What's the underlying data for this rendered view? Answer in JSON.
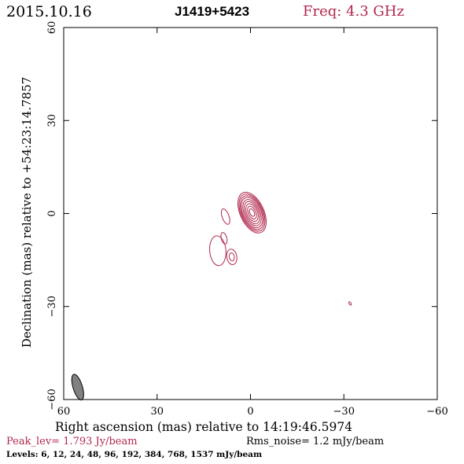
{
  "header": {
    "date": "2015.10.16",
    "source": "J1419+5423",
    "freq": "Freq: 4.3 GHz"
  },
  "footer": {
    "peak": "Peak_lev=  1.793 Jy/beam",
    "rms": "Rms_noise=  1.2 mJy/beam",
    "levels": "Levels:   6,   12,   24,   48,   96,  192,  384,  768,  1537 mJy/beam"
  },
  "colors": {
    "contour": "#b0284c",
    "axis": "#000000",
    "beam": "#808080"
  },
  "chart_data": {
    "type": "contour",
    "xlabel": "Right ascension (mas) relative to 14:19:46.5974",
    "ylabel": "Declination (mas) relative to +54:23:14.7857",
    "xlim": [
      60,
      -60
    ],
    "ylim": [
      -60,
      60
    ],
    "xticks": [
      60,
      30,
      0,
      -30,
      -60
    ],
    "yticks": [
      -60,
      -30,
      0,
      30,
      60
    ],
    "xtick_labels": [
      "60",
      "30",
      "0",
      "−30",
      "−60"
    ],
    "ytick_labels": [
      "−60",
      "−30",
      "0",
      "30",
      "60"
    ],
    "levels_mJy": [
      6,
      12,
      24,
      48,
      96,
      192,
      384,
      768,
      1537
    ],
    "components": [
      {
        "x": -0.5,
        "y": 0.3,
        "rx": [
          3.8,
          3.5,
          3.2,
          2.9,
          2.5,
          2.1,
          1.7,
          1.2,
          0.7
        ],
        "ry": [
          7.0,
          6.4,
          5.8,
          5.2,
          4.5,
          3.8,
          3.0,
          2.2,
          1.3
        ],
        "angle_deg": 25
      },
      {
        "x": 8.0,
        "y": -1.0,
        "rx": [
          1.1
        ],
        "ry": [
          2.6
        ],
        "angle_deg": 20
      },
      {
        "x": 8.5,
        "y": -8.0,
        "rx": [
          0.9
        ],
        "ry": [
          1.9
        ],
        "angle_deg": 15
      },
      {
        "x": 10.5,
        "y": -12.0,
        "rx": [
          2.6
        ],
        "ry": [
          4.8
        ],
        "angle_deg": 5
      },
      {
        "x": 6.0,
        "y": -14.0,
        "rx": [
          1.6,
          0.8
        ],
        "ry": [
          2.5,
          1.3
        ],
        "angle_deg": 10
      },
      {
        "x": -32.0,
        "y": -29.0,
        "rx": [
          0.3
        ],
        "ry": [
          0.6
        ],
        "angle_deg": 30
      }
    ],
    "beam": {
      "x": 55.5,
      "y": -56.0,
      "major": 4.3,
      "minor": 1.5,
      "angle_deg": 17
    }
  }
}
